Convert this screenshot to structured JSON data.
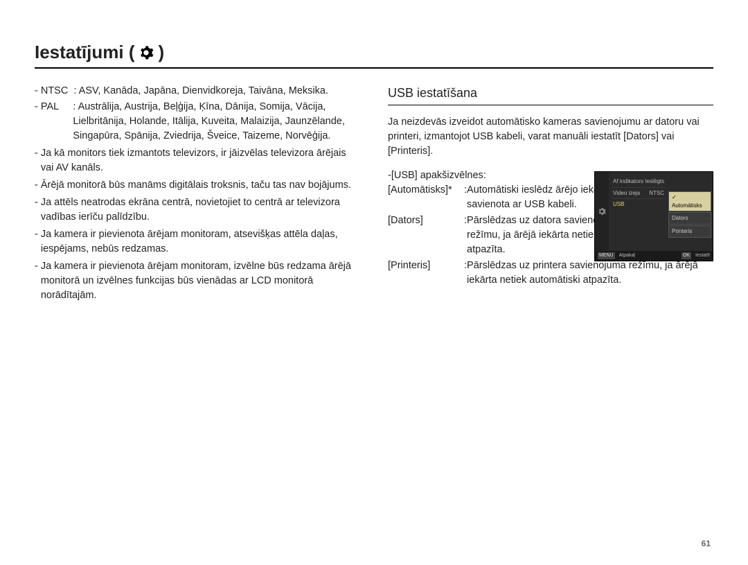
{
  "title": "Iestatījumi (",
  "title_close": ")",
  "left": {
    "ntsc_label": "- NTSC",
    "ntsc_text": ": ASV, Kanāda, Japāna, Dienvidkoreja, Taivāna, Meksika.",
    "pal_label": "- PAL",
    "pal_text": ": Austrālija, Austrija, Beļģija, Ķīna, Dānija, Somija, Vācija, Lielbritānija, Holande, Itālija, Kuveita, Malaizija, Jaunzēlande, Singapūra, Spānija, Zviedrija, Šveice, Taizeme, Norvēģija.",
    "bullets": [
      "Ja kā monitors tiek izmantots televizors, ir jāizvēlas televizora ārējais vai AV kanāls.",
      "Ārējā monitorā būs manāms digitālais troksnis, taču tas nav bojājums.",
      "Ja attēls neatrodas ekrāna centrā, novietojiet to centrā ar televizora vadības ierīču palīdzību.",
      "Ja kamera ir pievienota ārējam monitoram, atsevišķas attēla daļas, iespējams, nebūs redzamas.",
      "Ja kamera ir pievienota ārējam monitoram, izvēlne būs redzama ārējā monitorā un izvēlnes funkcijas būs vienādas ar LCD monitorā norādītajām."
    ]
  },
  "right": {
    "heading": "USB iestatīšana",
    "intro": "Ja neizdevās izveidot automātisko kameras savienojumu ar datoru vai printeri, izmantojot USB kabeli, varat manuāli iestatīt [Dators] vai [Printeris].",
    "submenu_label": "-[USB] apakšizvēlnes:",
    "items": [
      {
        "label": "[Automātisks]*",
        "desc": "Automātiski ieslēdz ārējo iekārtu, kas savienota ar USB kabeli.",
        "narrow": true
      },
      {
        "label": "[Dators]",
        "desc": "Pārslēdzas uz datora savienojuma režīmu, ja ārējā iekārta netiek automātiski atpazīta.",
        "narrow": true
      },
      {
        "label": "[Printeris]",
        "desc": "Pārslēdzas uz printera savienojuma režīmu, ja ārējā iekārta netiek automātiski atpazīta.",
        "narrow": false
      }
    ]
  },
  "camera": {
    "rows": [
      {
        "l": "Af indikators",
        "r": "Ieslēgts"
      },
      {
        "l": "Video izeja",
        "r": "NTSC"
      },
      {
        "l": "USB",
        "r": ""
      }
    ],
    "popup": [
      "Automātisks",
      "Dators",
      "Printeris"
    ],
    "footer_back_btn": "MENU",
    "footer_back": "Atpakaļ",
    "footer_ok_btn": "OK",
    "footer_ok": "Iestatīt",
    "colors": {
      "bg": "#2a2a2a",
      "left_bg": "#222222",
      "row_border": "#3a3a3a",
      "highlight_text": "#f0d060",
      "popup_bg": "#3a3a3a",
      "popup_active_bg": "#d8d0a0",
      "footer_bg": "#1a1a1a"
    }
  },
  "page_number": "61"
}
